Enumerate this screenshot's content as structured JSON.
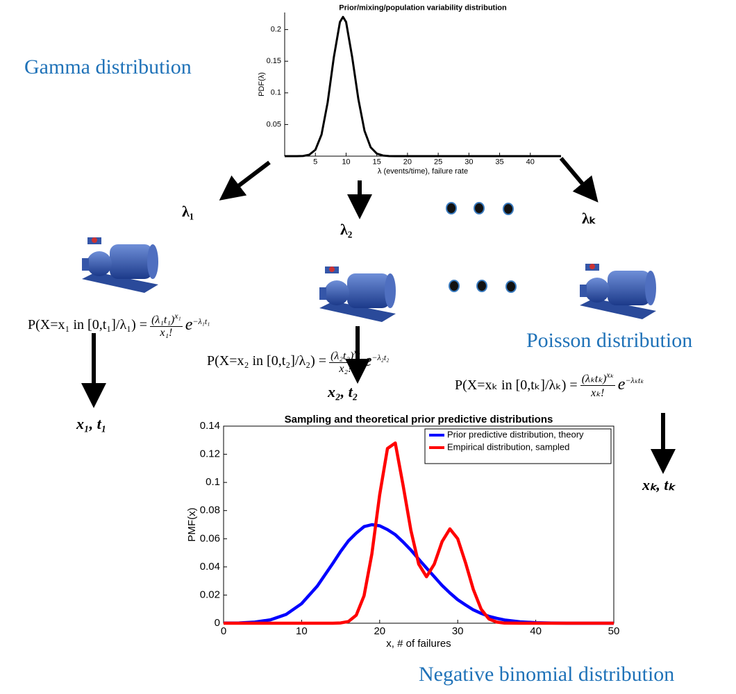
{
  "chart_data": [
    {
      "type": "line",
      "title": "Prior/mixing/population variability distribution",
      "x_label": "λ (events/time), failure rate",
      "y_label": "PDF(λ)",
      "x": [
        0,
        1,
        2,
        3,
        4,
        5,
        6,
        7,
        8,
        9,
        9.5,
        10,
        11,
        12,
        13,
        14,
        15,
        16,
        17,
        18,
        20,
        25,
        30,
        35,
        40,
        45
      ],
      "values": [
        0,
        0,
        0,
        0.0003,
        0.0022,
        0.01,
        0.034,
        0.085,
        0.156,
        0.212,
        0.22,
        0.212,
        0.156,
        0.09,
        0.04,
        0.014,
        0.004,
        0.001,
        0.0002,
        0,
        0,
        0,
        0,
        0,
        0,
        0
      ],
      "color": "#000000",
      "xlim": [
        0,
        45
      ],
      "ylim": [
        0,
        0.227
      ],
      "xticks": [
        5,
        10,
        15,
        20,
        25,
        30,
        35,
        40
      ],
      "yticks": [
        0.05,
        0.1,
        0.15,
        0.2
      ]
    },
    {
      "type": "line",
      "title": "Sampling and theoretical prior predictive distributions",
      "x_label": "x, # of failures",
      "y_label": "PMF(x)",
      "x": [
        0,
        2,
        4,
        6,
        8,
        10,
        12,
        14,
        15,
        16,
        17,
        18,
        19,
        20,
        21,
        22,
        23,
        24,
        25,
        26,
        27,
        28,
        29,
        30,
        31,
        32,
        33,
        34,
        35,
        36,
        38,
        40,
        42,
        44,
        46,
        48,
        50
      ],
      "series": [
        {
          "name": "Prior predictive distribution, theory",
          "color": "#0000ff",
          "values": [
            0.0001,
            0.0002,
            0.0008,
            0.0024,
            0.0062,
            0.0139,
            0.0263,
            0.0425,
            0.051,
            0.0585,
            0.064,
            0.0686,
            0.07,
            0.0692,
            0.0665,
            0.0629,
            0.0577,
            0.052,
            0.0455,
            0.0392,
            0.033,
            0.0268,
            0.0215,
            0.0167,
            0.013,
            0.0095,
            0.007,
            0.0049,
            0.0035,
            0.0023,
            0.001,
            0.0004,
            0.0001,
            0,
            0,
            0,
            0
          ]
        },
        {
          "name": "Empirical distribution, sampled",
          "color": "#ff0000",
          "values": [
            0,
            0,
            0,
            0,
            0,
            0,
            0,
            0,
            0.0002,
            0.0012,
            0.0057,
            0.0195,
            0.0492,
            0.0912,
            0.1241,
            0.128,
            0.098,
            0.066,
            0.042,
            0.033,
            0.042,
            0.058,
            0.067,
            0.06,
            0.043,
            0.024,
            0.01,
            0.003,
            0.0008,
            0.0001,
            0,
            0,
            0,
            0,
            0,
            0,
            0
          ]
        }
      ],
      "legend": "upper right",
      "xlim": [
        0,
        50
      ],
      "ylim": [
        0,
        0.14
      ],
      "xticks": [
        0,
        10,
        20,
        30,
        40,
        50
      ],
      "yticks": [
        0,
        0.02,
        0.04,
        0.06,
        0.08,
        0.1,
        0.12,
        0.14
      ]
    }
  ],
  "labels": {
    "gamma": "Gamma distribution",
    "poisson": "Poisson distribution",
    "negbin": "Negative binomial distribution",
    "lambdas": [
      "λ₁",
      "λ₂",
      "λₖ"
    ],
    "outputs": [
      "x₁, t₁",
      "x₂, t₂",
      "xₖ, tₖ"
    ]
  },
  "formulas": [
    {
      "lhs": "P(X=x₁ in [0,t₁]/λ₁) =",
      "numerator": "(λ₁t₁)",
      "numerator_power": "x₁",
      "denominator": "x₁!",
      "base": "e",
      "power": "−λ₁t₁"
    },
    {
      "lhs": "P(X=x₂ in [0,t₂]/λ₂) =",
      "numerator": "(λ₂t₂)",
      "numerator_power": "x₂",
      "denominator": "x₂!",
      "base": "e",
      "power": "−λ₂t₂"
    },
    {
      "lhs": "P(X=xₖ in [0,tₖ]/λₖ) =",
      "numerator": "(λₖtₖ)",
      "numerator_power": "xₖ",
      "denominator": "xₖ!",
      "base": "e",
      "power": "−λₖtₖ"
    }
  ]
}
